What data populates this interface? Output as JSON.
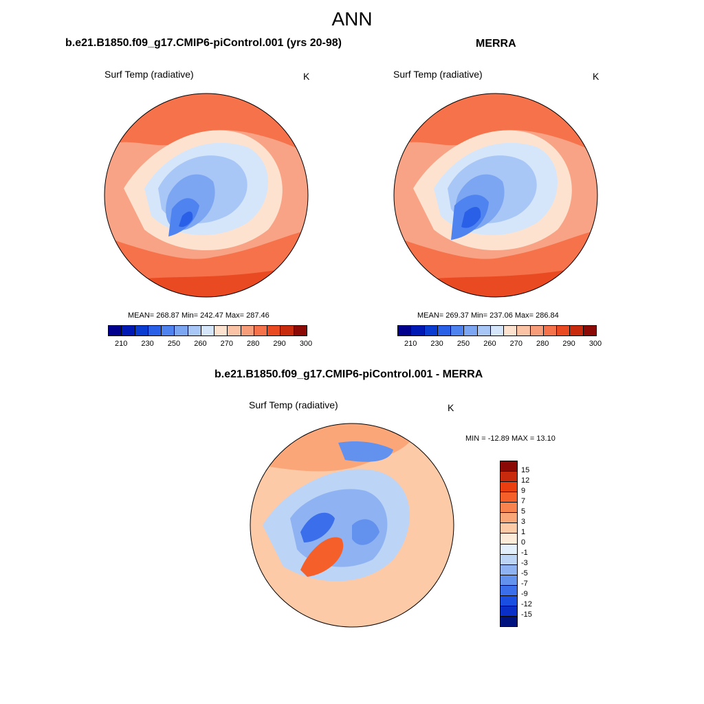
{
  "main_title": "ANN",
  "panels": [
    {
      "title": "b.e21.B1850.f09_g17.CMIP6-piControl.001 (yrs 20-98)",
      "variable": "Surf Temp (radiative)",
      "unit": "K",
      "stats": "MEAN= 268.87  Min= 242.47  Max= 287.46"
    },
    {
      "title": "MERRA",
      "variable": "Surf Temp (radiative)",
      "unit": "K",
      "stats": "MEAN= 269.37  Min= 237.06  Max= 286.84"
    },
    {
      "title": "b.e21.B1850.f09_g17.CMIP6-piControl.001 - MERRA",
      "variable": "Surf Temp (radiative)",
      "unit": "K",
      "stats": "MIN = -12.89 MAX =  13.10"
    }
  ],
  "colorbar_abs": {
    "colors": [
      "#00008c",
      "#0019b4",
      "#0a3cd2",
      "#2a60e8",
      "#4f83f0",
      "#7ca5f2",
      "#a8c6f6",
      "#d5e6fa",
      "#fde3cf",
      "#fbc3a6",
      "#f89d7a",
      "#f5724b",
      "#ea4a22",
      "#c82a0e",
      "#8c0a05"
    ],
    "labels": [
      "210",
      "230",
      "250",
      "260",
      "270",
      "280",
      "290",
      "300"
    ]
  },
  "colorbar_diff": {
    "colors": [
      "#8c0a05",
      "#c82a0e",
      "#ea3d10",
      "#f5602a",
      "#f8834e",
      "#fba678",
      "#fdcaa8",
      "#fdebd9",
      "#e4effc",
      "#bcd4f6",
      "#8fb3f2",
      "#6391ee",
      "#3a6eea",
      "#1a4de2",
      "#0a2fc8",
      "#00127e"
    ],
    "labels": [
      "15",
      "12",
      "9",
      "7",
      "5",
      "3",
      "1",
      "0",
      "-1",
      "-3",
      "-5",
      "-7",
      "-9",
      "-12",
      "-15"
    ]
  }
}
